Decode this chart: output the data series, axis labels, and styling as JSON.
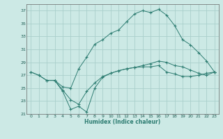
{
  "title": "",
  "xlabel": "Humidex (Indice chaleur)",
  "background_color": "#cce9e5",
  "grid_color": "#aacfcb",
  "line_color": "#2e7d72",
  "xlim": [
    -0.5,
    23.5
  ],
  "ylim": [
    21,
    38
  ],
  "xticks": [
    0,
    1,
    2,
    3,
    4,
    5,
    6,
    7,
    8,
    9,
    10,
    11,
    12,
    13,
    14,
    15,
    16,
    17,
    18,
    19,
    20,
    21,
    22,
    23
  ],
  "yticks": [
    21,
    23,
    25,
    27,
    29,
    31,
    33,
    35,
    37
  ],
  "series1_x": [
    0,
    1,
    2,
    3,
    4,
    5,
    6,
    7,
    8,
    9,
    10,
    11,
    12,
    13,
    14,
    15,
    16,
    17,
    18,
    19,
    20,
    21,
    22,
    23
  ],
  "series1_y": [
    27.5,
    27.0,
    26.2,
    26.2,
    24.5,
    21.7,
    22.2,
    21.3,
    25.0,
    26.7,
    27.3,
    27.7,
    28.0,
    28.2,
    28.3,
    28.3,
    28.5,
    27.5,
    27.2,
    26.8,
    26.8,
    27.0,
    27.3,
    27.5
  ],
  "series2_x": [
    0,
    1,
    2,
    3,
    4,
    5,
    6,
    7,
    8,
    9,
    10,
    11,
    12,
    13,
    14,
    15,
    16,
    17,
    18,
    19,
    20,
    21,
    22,
    23
  ],
  "series2_y": [
    27.5,
    27.0,
    26.2,
    26.2,
    25.2,
    25.0,
    28.0,
    29.8,
    31.8,
    32.5,
    33.5,
    34.0,
    35.3,
    36.5,
    37.0,
    36.7,
    37.2,
    36.3,
    34.7,
    32.5,
    31.7,
    30.5,
    29.2,
    27.5
  ],
  "series3_x": [
    3,
    4,
    5,
    6,
    7,
    8,
    9,
    10,
    11,
    12,
    13,
    14,
    15,
    16,
    17,
    18,
    19,
    20,
    21,
    22,
    23
  ],
  "series3_y": [
    26.2,
    24.7,
    23.2,
    22.5,
    24.5,
    25.8,
    26.8,
    27.3,
    27.7,
    28.0,
    28.2,
    28.5,
    28.8,
    29.2,
    29.0,
    28.5,
    28.3,
    27.8,
    27.3,
    27.0,
    27.5
  ]
}
